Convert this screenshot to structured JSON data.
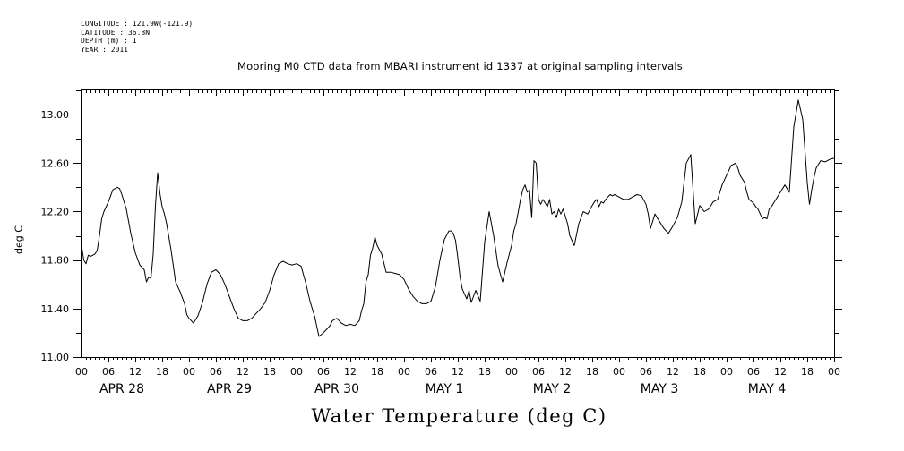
{
  "meta": {
    "longitude": "LONGITUDE : 121.9W(-121.9)",
    "latitude": "LATITUDE : 36.8N",
    "depth": "DEPTH (m) : 1",
    "year": "YEAR : 2011"
  },
  "chart_data": {
    "type": "line",
    "title": "Mooring M0 CTD data from MBARI instrument id 1337 at original sampling intervals",
    "xlabel": "Water Temperature (deg C)",
    "ylabel": "deg C",
    "ylim": [
      11.0,
      13.2
    ],
    "xlim_hours": [
      0,
      168
    ],
    "y_ticks": [
      "11.00",
      "11.40",
      "11.80",
      "12.20",
      "12.60",
      "13.00"
    ],
    "x_hour_ticks": [
      "00",
      "06",
      "12",
      "18",
      "00",
      "06",
      "12",
      "18",
      "00",
      "06",
      "12",
      "18",
      "00",
      "06",
      "12",
      "18",
      "00",
      "06",
      "12",
      "18",
      "00",
      "06",
      "12",
      "18",
      "00",
      "06",
      "12",
      "18",
      "00"
    ],
    "day_labels": [
      "APR 28",
      "APR 29",
      "APR 30",
      "MAY  1",
      "MAY  2",
      "MAY  3",
      "MAY  4"
    ],
    "grid": false,
    "color": "#000000",
    "series": [
      {
        "x": [
          0,
          0.5,
          1,
          1.5,
          2,
          3,
          3.5,
          4,
          4.5,
          5,
          6,
          7,
          8,
          8.5,
          9,
          10,
          11,
          12,
          13,
          14,
          14.5,
          15,
          15.5,
          16,
          16.5,
          17,
          17.5,
          18,
          18.5,
          19,
          20,
          21,
          22,
          23,
          23.5,
          24,
          25,
          26,
          27,
          28,
          29,
          30,
          31,
          32,
          33,
          34,
          35,
          36,
          37,
          38,
          39,
          40,
          41,
          42,
          43,
          44,
          45,
          46,
          47,
          48,
          49,
          50,
          51,
          52,
          53,
          54,
          55,
          55.5,
          56,
          57,
          58,
          59,
          60,
          61,
          62,
          62.5,
          63,
          63.5,
          64,
          64.5,
          65,
          65.5,
          66,
          67,
          68,
          69,
          70,
          71,
          72,
          73,
          74,
          75,
          76,
          77,
          78,
          79,
          80,
          81,
          82,
          82.5,
          83,
          83.5,
          84,
          84.5,
          85,
          85.5,
          86,
          86.5,
          87,
          88,
          89,
          90,
          91,
          92,
          93,
          94,
          95,
          96,
          96.5,
          97,
          97.5,
          98,
          98.5,
          99,
          99.5,
          100,
          100.5,
          101,
          101.5,
          102,
          102.5,
          103,
          104,
          104.5,
          105,
          105.5,
          106,
          106.5,
          107,
          107.5,
          108,
          108.5,
          109,
          110,
          111,
          112,
          113,
          114,
          114.5,
          115,
          115.5,
          116,
          116.5,
          117,
          117.5,
          118,
          118.5,
          119,
          120,
          121,
          122,
          123,
          124,
          125,
          126,
          126.5,
          127,
          128,
          129,
          130,
          131,
          132,
          133,
          134,
          135,
          136,
          137,
          138,
          139,
          140,
          141,
          142,
          143,
          144,
          145,
          146,
          146.5,
          147,
          148,
          148.5,
          149,
          150,
          150.5,
          151,
          151.5,
          152,
          152.5,
          153,
          153.5,
          154,
          155,
          156,
          157,
          158,
          159,
          160,
          161,
          161.5,
          162,
          162.5,
          163,
          163.5,
          164,
          165,
          166,
          167,
          168
        ],
        "values": [
          11.92,
          11.8,
          11.77,
          11.84,
          11.83,
          11.85,
          11.88,
          12.0,
          12.14,
          12.2,
          12.28,
          12.38,
          12.4,
          12.39,
          12.34,
          12.22,
          12.02,
          11.86,
          11.76,
          11.72,
          11.62,
          11.66,
          11.65,
          11.85,
          12.25,
          12.52,
          12.35,
          12.24,
          12.18,
          12.1,
          11.88,
          11.62,
          11.54,
          11.44,
          11.35,
          11.32,
          11.28,
          11.34,
          11.45,
          11.6,
          11.7,
          11.72,
          11.68,
          11.6,
          11.5,
          11.4,
          11.32,
          11.3,
          11.3,
          11.32,
          11.36,
          11.4,
          11.45,
          11.55,
          11.68,
          11.77,
          11.79,
          11.77,
          11.76,
          11.77,
          11.75,
          11.62,
          11.46,
          11.34,
          11.17,
          11.2,
          11.24,
          11.26,
          11.3,
          11.32,
          11.28,
          11.26,
          11.27,
          11.26,
          11.3,
          11.38,
          11.44,
          11.62,
          11.68,
          11.84,
          11.9,
          11.99,
          11.92,
          11.85,
          11.7,
          11.7,
          11.69,
          11.68,
          11.64,
          11.56,
          11.5,
          11.46,
          11.44,
          11.44,
          11.46,
          11.58,
          11.8,
          11.97,
          12.04,
          12.04,
          12.02,
          11.96,
          11.82,
          11.66,
          11.56,
          11.52,
          11.48,
          11.55,
          11.45,
          11.55,
          11.46,
          11.95,
          12.2,
          12.0,
          11.75,
          11.62,
          11.78,
          11.92,
          12.04,
          12.1,
          12.2,
          12.3,
          12.38,
          12.42,
          12.36,
          12.38,
          12.15,
          12.62,
          12.6,
          12.3,
          12.26,
          12.3,
          12.24,
          12.3,
          12.18,
          12.2,
          12.15,
          12.22,
          12.18,
          12.22,
          12.16,
          12.1,
          12.0,
          11.92,
          12.1,
          12.2,
          12.18,
          12.25,
          12.28,
          12.3,
          12.24,
          12.28,
          12.27,
          12.3,
          12.32,
          12.34,
          12.33,
          12.34,
          12.32,
          12.3,
          12.3,
          12.32,
          12.34,
          12.33,
          12.26,
          12.18,
          12.06,
          12.18,
          12.12,
          12.06,
          12.02,
          12.08,
          12.15,
          12.28,
          12.6,
          12.67,
          12.1,
          12.25,
          12.2,
          12.22,
          12.28,
          12.3,
          12.42,
          12.5,
          12.58,
          12.6,
          12.56,
          12.5,
          12.44,
          12.36,
          12.3,
          12.27,
          12.24,
          12.22,
          12.18,
          12.14,
          12.15,
          12.14,
          12.22,
          12.24,
          12.3,
          12.36,
          12.42,
          12.36,
          12.9,
          13.12,
          12.96,
          12.7,
          12.44,
          12.26,
          12.38,
          12.48,
          12.56,
          12.62,
          12.61,
          12.63,
          12.64
        ]
      }
    ]
  }
}
